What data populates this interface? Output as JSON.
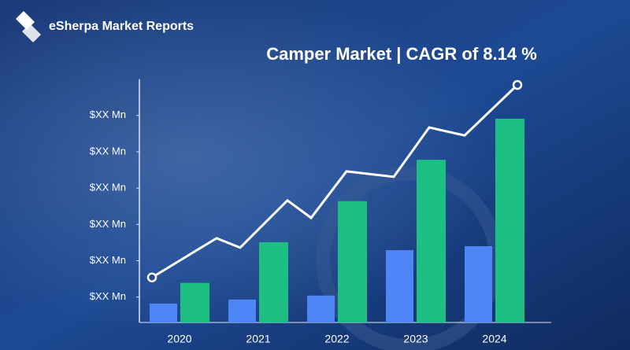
{
  "chart_data": {
    "type": "bar",
    "brand": "eSherpa Market Reports",
    "title": "Camper Market | CAGR of 8.14 %",
    "categories": [
      "2020",
      "2021",
      "2022",
      "2023",
      "2024"
    ],
    "series": [
      {
        "color": "#4f86f7",
        "values": [
          0.82,
          0.93,
          1.04,
          2.29,
          2.4
        ]
      },
      {
        "color": "#1dbf84",
        "values": [
          1.39,
          2.51,
          3.64,
          4.78,
          5.91
        ]
      }
    ],
    "trend": {
      "type": "line",
      "color": "#ffffff",
      "x": [
        -0.35,
        0.47,
        0.77,
        1.37,
        1.67,
        2.12,
        2.72,
        3.17,
        3.62,
        4.29
      ],
      "values": [
        1.54,
        2.62,
        2.36,
        3.66,
        3.18,
        4.46,
        4.31,
        5.67,
        5.45,
        6.84
      ]
    },
    "ylim": [
      0.3,
      7
    ],
    "yticks": [
      {
        "value": 1,
        "label": "$XX Mn"
      },
      {
        "value": 2,
        "label": "$XX Mn"
      },
      {
        "value": 3,
        "label": "$XX Mn"
      },
      {
        "value": 4,
        "label": "$XX Mn"
      },
      {
        "value": 5,
        "label": "$XX Mn"
      },
      {
        "value": 6,
        "label": "$XX Mn"
      }
    ]
  }
}
